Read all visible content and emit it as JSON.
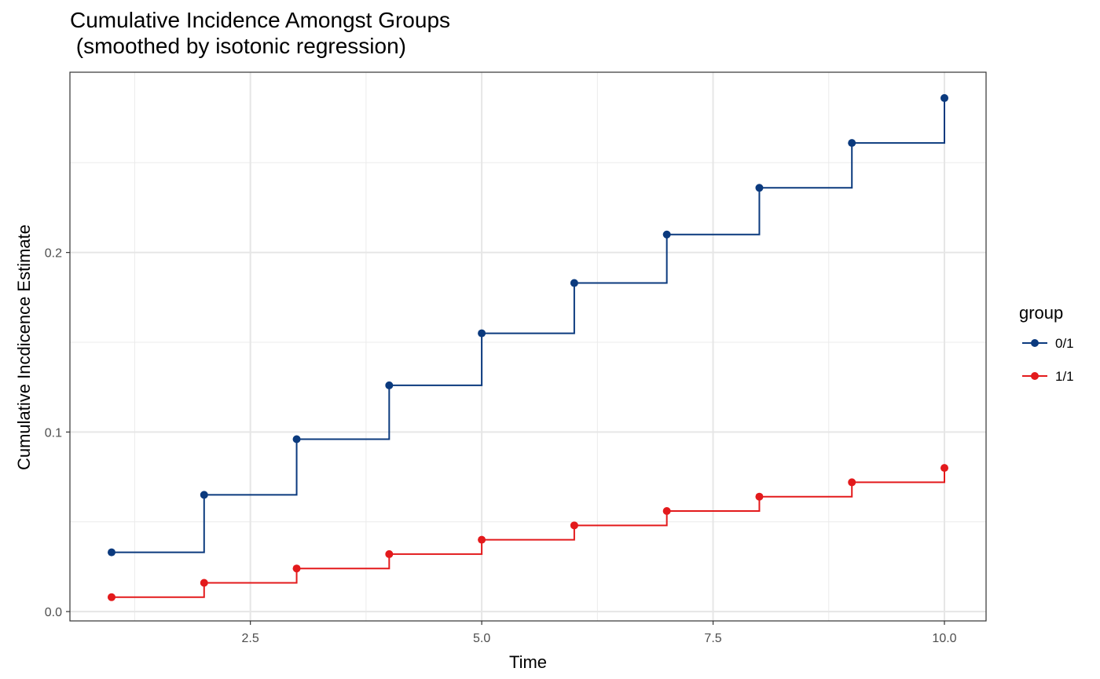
{
  "chart_data": {
    "type": "line",
    "step": true,
    "title": "Cumulative Incidence Amongst Groups",
    "subtitle": " (smoothed by isotonic regression)",
    "xlabel": "Time",
    "ylabel": "Cumulative Incdicence Estimate",
    "xlim": [
      0.55,
      10.45
    ],
    "ylim": [
      -0.0052,
      0.3004
    ],
    "x_ticks": [
      2.5,
      5.0,
      7.5,
      10.0
    ],
    "x_tick_labels": [
      "2.5",
      "5.0",
      "7.5",
      "10.0"
    ],
    "y_ticks": [
      0.0,
      0.1,
      0.2
    ],
    "y_tick_labels": [
      "0.0",
      "0.1",
      "0.2"
    ],
    "grid": true,
    "legend": {
      "title": "group",
      "position": "right"
    },
    "x": [
      1,
      2,
      3,
      4,
      5,
      6,
      7,
      8,
      9,
      10
    ],
    "series": [
      {
        "name": "0/1",
        "color": "#0b3a7e",
        "values": [
          0.033,
          0.065,
          0.096,
          0.126,
          0.155,
          0.183,
          0.21,
          0.236,
          0.261,
          0.286
        ]
      },
      {
        "name": "1/1",
        "color": "#e31a1c",
        "values": [
          0.008,
          0.016,
          0.024,
          0.032,
          0.04,
          0.048,
          0.056,
          0.064,
          0.072,
          0.08
        ]
      }
    ]
  }
}
